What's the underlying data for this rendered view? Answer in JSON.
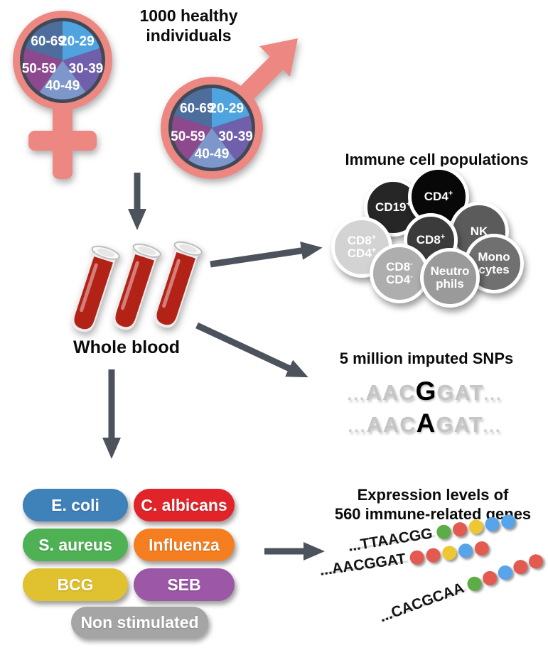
{
  "title": "1000 healthy individuals",
  "colors": {
    "symbol_salmon": "#EC8782",
    "pie_border": "#424A56",
    "arrow": "#4D535D",
    "blood": "#B32119",
    "text": "#0B0B0B"
  },
  "demographics": {
    "age_groups": [
      {
        "label": "20-29",
        "color": "#4FA3DE"
      },
      {
        "label": "30-39",
        "color": "#6F61AB"
      },
      {
        "label": "40-49",
        "color": "#7E97CB"
      },
      {
        "label": "50-59",
        "color": "#8C4A8E"
      },
      {
        "label": "60-69",
        "color": "#4E6E9D"
      }
    ],
    "symbols": [
      "female",
      "male"
    ]
  },
  "whole_blood": {
    "label": "Whole blood",
    "tube_count": 3
  },
  "immune_cells": {
    "title": "Immune cell populations",
    "cells": [
      {
        "lines": [
          [
            "CD19",
            "+"
          ]
        ],
        "color": "#262626"
      },
      {
        "lines": [
          [
            "CD4",
            "+"
          ]
        ],
        "color": "#080808"
      },
      {
        "lines": [
          [
            "NK",
            ""
          ]
        ],
        "color": "#5B5B5B"
      },
      {
        "lines": [
          [
            "CD8",
            "+"
          ],
          [
            "CD4",
            "+"
          ]
        ],
        "color": "#D3D3D3"
      },
      {
        "lines": [
          [
            "CD8",
            "+"
          ]
        ],
        "color": "#3B3B3B"
      },
      {
        "lines": [
          [
            "Mono",
            ""
          ],
          [
            "cytes",
            ""
          ]
        ],
        "color": "#707070"
      },
      {
        "lines": [
          [
            "CD8",
            "-"
          ],
          [
            "CD4",
            "-"
          ]
        ],
        "color": "#AEAEAE"
      },
      {
        "lines": [
          [
            "Neutro",
            ""
          ],
          [
            "phils",
            ""
          ]
        ],
        "color": "#9A9A9A"
      }
    ]
  },
  "snps": {
    "title": "5 million imputed SNPs",
    "sequences": [
      {
        "prefix": "...",
        "before": "AAC",
        "variant": "G",
        "after": "GAT",
        "suffix": "..."
      },
      {
        "prefix": "...",
        "before": "AAC",
        "variant": "A",
        "after": "GAT",
        "suffix": "..."
      }
    ]
  },
  "stimuli": {
    "items": [
      {
        "label": "E. coli",
        "color": "#3F81B9"
      },
      {
        "label": "C. albicans",
        "color": "#E1242A"
      },
      {
        "label": "S. aureus",
        "color": "#4EB254"
      },
      {
        "label": "Influenza",
        "color": "#F57E20"
      },
      {
        "label": "BCG",
        "color": "#E0C12F"
      },
      {
        "label": "SEB",
        "color": "#9C57A6"
      },
      {
        "label": "Non stimulated",
        "color": "#A5A5A5"
      }
    ]
  },
  "expression": {
    "title_line1": "Expression levels of",
    "title_line2": "560 immune-related genes",
    "dot_colors": {
      "green": "#5CAD45",
      "red": "#E25A50",
      "yellow": "#EDC832",
      "blue": "#57A4EA"
    },
    "reads": [
      {
        "sequence": "...TTAACGG",
        "dots": [
          "green",
          "red",
          "yellow",
          "blue",
          "blue"
        ]
      },
      {
        "sequence": "...AACGGAT",
        "dots": [
          "red",
          "red",
          "yellow",
          "blue",
          "red"
        ]
      },
      {
        "sequence": "...CACGCAA",
        "dots": [
          "green",
          "red",
          "blue",
          "red",
          "red"
        ]
      }
    ]
  }
}
